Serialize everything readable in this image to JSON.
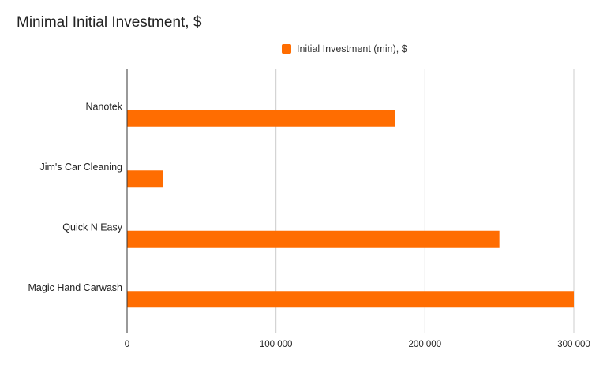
{
  "chart_data": {
    "type": "bar",
    "orientation": "horizontal",
    "title": "Minimal Initial Investment, $",
    "xlabel": "",
    "ylabel": "",
    "categories": [
      "Nanotek",
      "Jim's Car Cleaning",
      "Quick N Easy",
      "Magic Hand Carwash"
    ],
    "series": [
      {
        "name": "Initial Investment (min), $",
        "values": [
          180000,
          24000,
          250000,
          300000
        ],
        "color": "#ff6d01"
      }
    ],
    "xlim": [
      0,
      300000
    ],
    "x_ticks": [
      0,
      100000,
      200000,
      300000
    ],
    "x_tick_labels": [
      "0",
      "100 000",
      "200 000",
      "300 000"
    ],
    "grid": "vertical",
    "legend_position": "top"
  },
  "colors": {
    "bar": "#ff6d01",
    "grid": "#cccccc",
    "axis": "#333333",
    "text": "#222222"
  }
}
